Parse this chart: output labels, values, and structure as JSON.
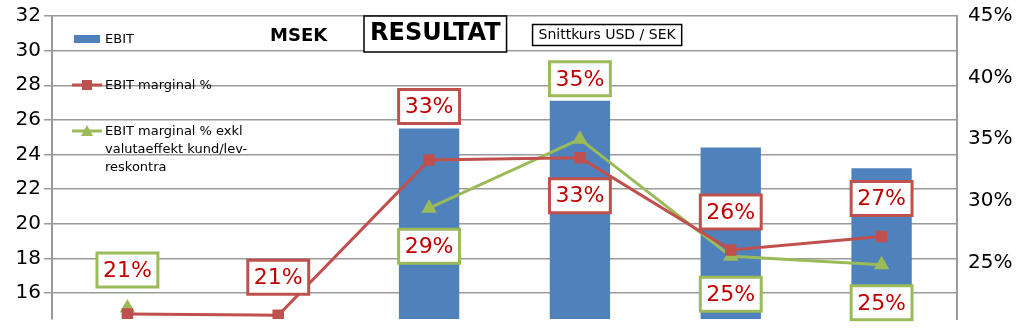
{
  "chart_data": {
    "type": "bar",
    "title": "RESULTAT",
    "ylabel": "MSEK",
    "annotations": [
      "Snittkurs USD / SEK"
    ],
    "categories": [
      null,
      null,
      null,
      null,
      null,
      null
    ],
    "series": [
      {
        "name": "EBIT",
        "color": "#4f81bd",
        "values": [
          null,
          null,
          25.5,
          27.1,
          24.4,
          23.2
        ]
      },
      {
        "name": "EBIT marginal %",
        "type": "line",
        "axis": "y2",
        "marker": "square",
        "color": "#c0504d",
        "values": [
          20.8,
          20.7,
          33.3,
          33.5,
          26,
          27.1
        ],
        "value_labels": [
          null,
          "21%",
          "33%",
          "33%",
          "26%",
          "27%"
        ]
      },
      {
        "name": "EBIT marginal % exkl valutaeffekt kund/lev-reskontra",
        "type": "line",
        "axis": "y2",
        "marker": "triangle",
        "color": "#9bbb59",
        "values": [
          21.3,
          null,
          29.4,
          35,
          25.5,
          24.8
        ],
        "value_labels": [
          "21%",
          null,
          "29%",
          "35%",
          "25%",
          "25%"
        ]
      }
    ],
    "ylim": [
      14.5,
      32
    ],
    "yticks": [
      16,
      18,
      20,
      22,
      24,
      26,
      28,
      30,
      32
    ],
    "y2lim": [
      20.4,
      45
    ],
    "y2ticks": [
      {
        "value": 25,
        "label": "25%"
      },
      {
        "value": 30,
        "label": "30%"
      },
      {
        "value": 35,
        "label": "35%"
      },
      {
        "value": 40,
        "label": "40%"
      },
      {
        "value": 45,
        "label": "45%"
      }
    ],
    "grid": "y",
    "legend": "top left"
  }
}
